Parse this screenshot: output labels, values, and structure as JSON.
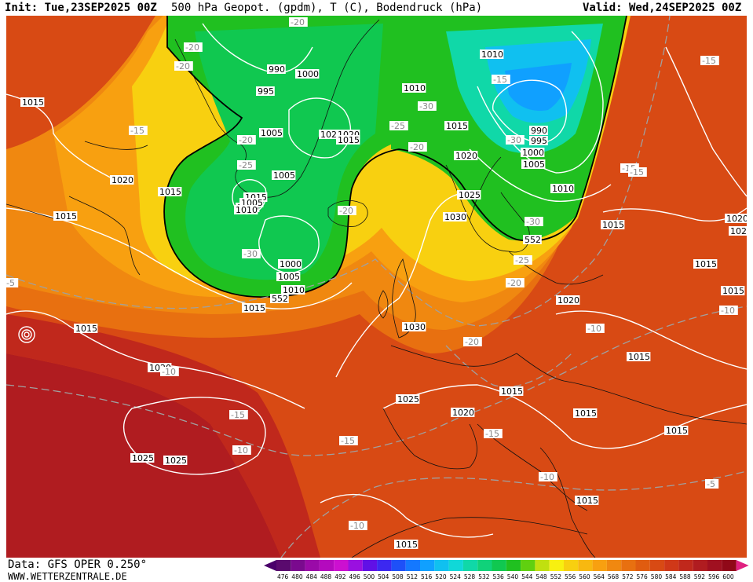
{
  "header": {
    "init": "Init: Tue,23SEP2025 00Z",
    "title": "500 hPa Geopot. (gpdm), T (C), Bodendruck (hPa)",
    "valid": "Valid: Wed,24SEP2025 00Z"
  },
  "footer": {
    "data_source": "Data: GFS OPER 0.250°",
    "website": "WWW.WETTERZENTRALE.DE"
  },
  "colors": {
    "ocean_border": "#ffffff",
    "pressure_isobar": "#ffffff",
    "temperature_isoline": "#a0a0a0",
    "geopotential_552": "#000000"
  },
  "legend": {
    "values": [
      "476",
      "480",
      "484",
      "488",
      "492",
      "496",
      "500",
      "504",
      "508",
      "512",
      "516",
      "520",
      "524",
      "528",
      "532",
      "536",
      "540",
      "544",
      "548",
      "552",
      "556",
      "560",
      "564",
      "568",
      "572",
      "576",
      "580",
      "584",
      "588",
      "592",
      "596",
      "600"
    ],
    "colors": [
      "#5a0a6e",
      "#7a0a8e",
      "#9a0aa8",
      "#b40abe",
      "#cc10d0",
      "#9a10e0",
      "#6010e6",
      "#3c28f0",
      "#1e50f8",
      "#1478ff",
      "#10a0ff",
      "#10c0f0",
      "#10d8d8",
      "#10d8a8",
      "#10d27a",
      "#10c850",
      "#20c020",
      "#60d010",
      "#c0e010",
      "#f8f010",
      "#f8d010",
      "#f8b810",
      "#f8a010",
      "#f08810",
      "#e87010",
      "#e05c10",
      "#d84a14",
      "#d03818",
      "#c0281c",
      "#b01c20",
      "#a01020",
      "#900818"
    ],
    "arrow_left_color": "#4a006a",
    "arrow_right_color": "#e02080"
  },
  "pressure_labels": [
    {
      "text": "1015"
    },
    {
      "text": "990"
    },
    {
      "text": "1000"
    },
    {
      "text": "995"
    },
    {
      "text": "1005"
    },
    {
      "text": "1025"
    },
    {
      "text": "1020"
    },
    {
      "text": "1015"
    },
    {
      "text": "1010"
    },
    {
      "text": "1015"
    },
    {
      "text": "1010"
    },
    {
      "text": "990"
    },
    {
      "text": "995"
    },
    {
      "text": "1000"
    },
    {
      "text": "1005"
    },
    {
      "text": "1010"
    },
    {
      "text": "1020"
    },
    {
      "text": "1025"
    },
    {
      "text": "1030"
    },
    {
      "text": "1015"
    },
    {
      "text": "1020"
    },
    {
      "text": "1020"
    },
    {
      "text": "1015"
    },
    {
      "text": "1015"
    },
    {
      "text": "1015"
    },
    {
      "text": "1010"
    },
    {
      "text": "1005"
    },
    {
      "text": "1015"
    },
    {
      "text": "1000"
    },
    {
      "text": "1005"
    },
    {
      "text": "1010"
    },
    {
      "text": "1015"
    },
    {
      "text": "1030"
    },
    {
      "text": "1015"
    },
    {
      "text": "1020"
    },
    {
      "text": "1025"
    },
    {
      "text": "1020"
    },
    {
      "text": "1015"
    },
    {
      "text": "1015"
    },
    {
      "text": "1015"
    },
    {
      "text": "1015"
    },
    {
      "text": "1025"
    },
    {
      "text": "1025"
    },
    {
      "text": "1015"
    },
    {
      "text": "1015"
    },
    {
      "text": "1020"
    },
    {
      "text": "1020"
    },
    {
      "text": "1015"
    },
    {
      "text": "1005"
    },
    {
      "text": "1010"
    }
  ],
  "temperature_labels": [
    {
      "text": "-20"
    },
    {
      "text": "-20"
    },
    {
      "text": "-15"
    },
    {
      "text": "-20"
    },
    {
      "text": "-25"
    },
    {
      "text": "-20"
    },
    {
      "text": "-30"
    },
    {
      "text": "-25"
    },
    {
      "text": "-20"
    },
    {
      "text": "-30"
    },
    {
      "text": "-30"
    },
    {
      "text": "-30"
    },
    {
      "text": "-25"
    },
    {
      "text": "-20"
    },
    {
      "text": "-15"
    },
    {
      "text": "-15"
    },
    {
      "text": "-5"
    },
    {
      "text": "-10"
    },
    {
      "text": "-15"
    },
    {
      "text": "-10"
    },
    {
      "text": "-15"
    },
    {
      "text": "-20"
    },
    {
      "text": "-15"
    },
    {
      "text": "-10"
    },
    {
      "text": "-10"
    },
    {
      "text": "-10"
    },
    {
      "text": "-10"
    },
    {
      "text": "-5"
    },
    {
      "text": "-15"
    },
    {
      "text": "-15"
    },
    {
      "text": "-20"
    }
  ],
  "geopotential_labels": [
    {
      "text": "552"
    },
    {
      "text": "552"
    }
  ]
}
